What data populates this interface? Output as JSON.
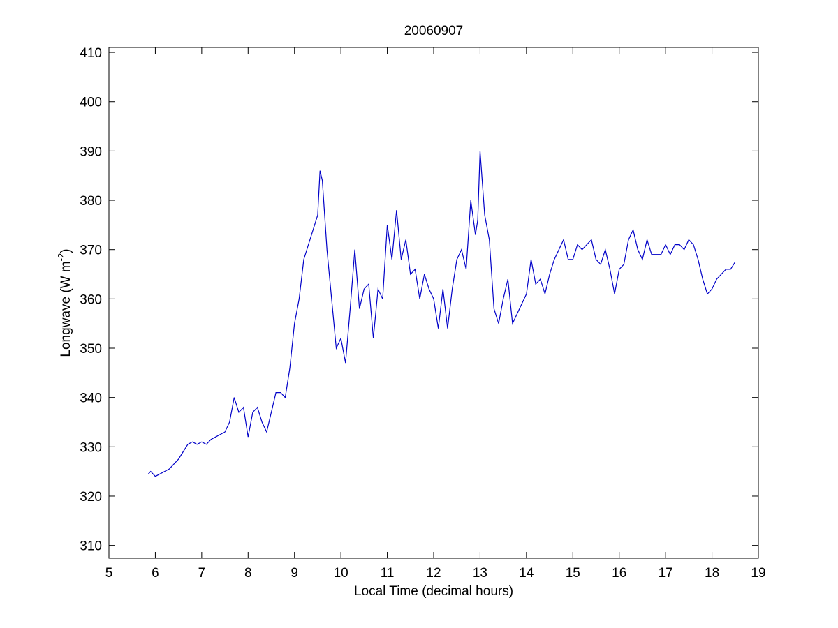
{
  "chart_data": {
    "type": "line",
    "title": "20060907",
    "xlabel": "Local Time (decimal hours)",
    "ylabel": {
      "text": "Longwave (W m",
      "superscript": "-2",
      "suffix": ")"
    },
    "xlim": [
      5,
      19
    ],
    "xticks": [
      5,
      6,
      7,
      8,
      9,
      10,
      11,
      12,
      13,
      14,
      15,
      16,
      17,
      18,
      19
    ],
    "ylim": [
      307.4,
      411
    ],
    "yticks": [
      310,
      320,
      330,
      340,
      350,
      360,
      370,
      380,
      390,
      400,
      410
    ],
    "grid": false,
    "x": [
      5.85,
      5.9,
      6.0,
      6.1,
      6.2,
      6.3,
      6.4,
      6.5,
      6.6,
      6.7,
      6.8,
      6.9,
      7.0,
      7.1,
      7.2,
      7.3,
      7.4,
      7.5,
      7.6,
      7.7,
      7.8,
      7.9,
      8.0,
      8.1,
      8.2,
      8.3,
      8.4,
      8.5,
      8.6,
      8.7,
      8.8,
      8.9,
      9.0,
      9.1,
      9.2,
      9.3,
      9.4,
      9.5,
      9.55,
      9.6,
      9.7,
      9.8,
      9.9,
      10.0,
      10.1,
      10.2,
      10.3,
      10.4,
      10.5,
      10.6,
      10.7,
      10.8,
      10.9,
      11.0,
      11.1,
      11.2,
      11.3,
      11.4,
      11.5,
      11.6,
      11.7,
      11.8,
      11.9,
      12.0,
      12.1,
      12.2,
      12.3,
      12.4,
      12.5,
      12.6,
      12.7,
      12.8,
      12.9,
      12.95,
      13.0,
      13.1,
      13.2,
      13.3,
      13.4,
      13.5,
      13.6,
      13.7,
      13.8,
      13.9,
      14.0,
      14.1,
      14.2,
      14.3,
      14.4,
      14.5,
      14.6,
      14.7,
      14.8,
      14.9,
      15.0,
      15.1,
      15.2,
      15.3,
      15.4,
      15.5,
      15.6,
      15.7,
      15.8,
      15.9,
      16.0,
      16.1,
      16.2,
      16.3,
      16.4,
      16.5,
      16.6,
      16.7,
      16.8,
      16.9,
      17.0,
      17.1,
      17.2,
      17.3,
      17.4,
      17.5,
      17.6,
      17.7,
      17.8,
      17.9,
      18.0,
      18.1,
      18.2,
      18.3,
      18.4,
      18.5
    ],
    "series": [
      {
        "color": "#0000c8",
        "values": [
          324.5,
          325,
          324,
          324.5,
          325,
          325.5,
          326.5,
          327.5,
          329,
          330.5,
          331,
          330.5,
          331,
          330.5,
          331.5,
          332,
          332.5,
          333,
          335,
          340,
          337,
          338,
          332,
          337,
          338,
          335,
          333,
          337,
          341,
          341,
          340,
          346,
          355,
          360,
          368,
          371,
          374,
          377,
          386,
          384,
          370,
          360,
          350,
          352,
          347,
          358,
          370,
          358,
          362,
          363,
          352,
          362,
          360,
          375,
          368,
          378,
          368,
          372,
          365,
          366,
          360,
          365,
          362,
          360,
          354,
          362,
          354,
          362,
          368,
          370,
          366,
          380,
          373,
          376,
          390,
          377,
          372,
          358,
          355,
          360,
          364,
          355,
          357,
          359,
          361,
          368,
          363,
          364,
          361,
          365,
          368,
          370,
          372,
          368,
          368,
          371,
          370,
          371,
          372,
          368,
          367,
          370,
          366,
          361,
          366,
          367,
          372,
          374,
          370,
          368,
          372,
          369,
          369,
          369,
          371,
          369,
          371,
          371,
          370,
          372,
          371,
          368,
          364,
          361,
          362,
          364,
          365,
          366,
          366,
          367.5
        ]
      }
    ]
  }
}
